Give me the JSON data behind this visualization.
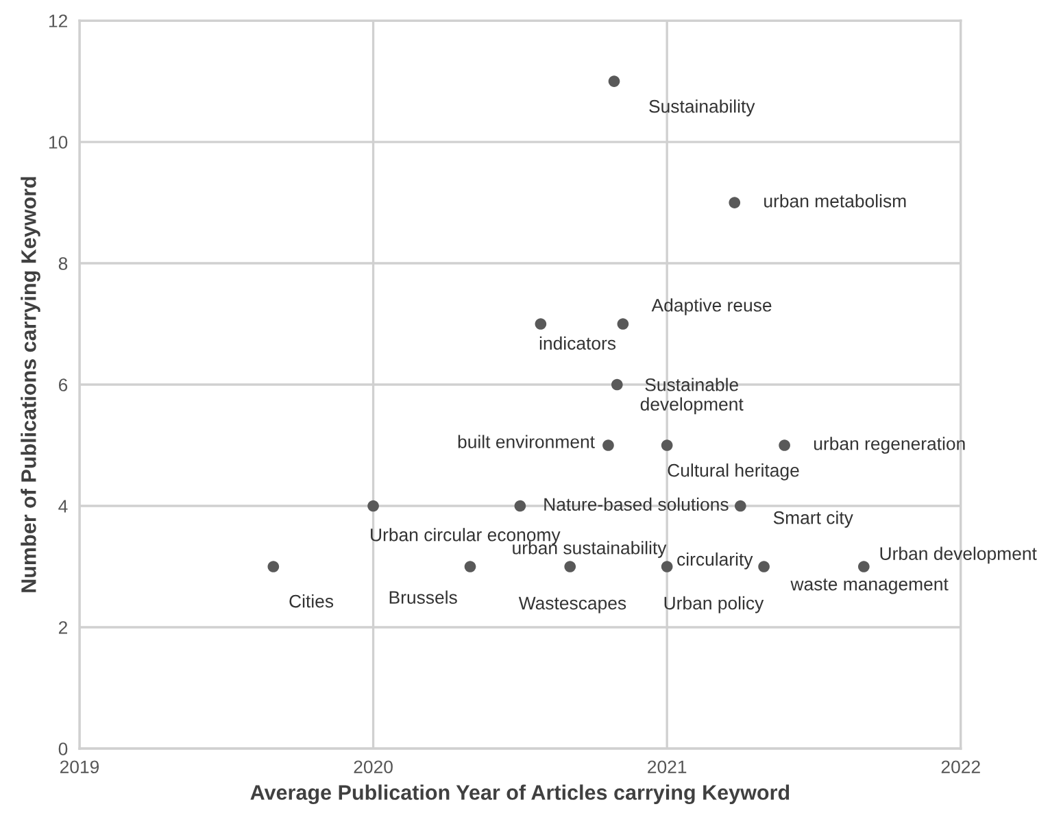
{
  "chart_data": {
    "type": "scatter",
    "xlabel": "Average Publication Year of Articles carrying Keyword",
    "ylabel": "Number of Publications carrying Keyword",
    "xlim": [
      2019,
      2022
    ],
    "xticks": [
      2019,
      2020,
      2021,
      2022
    ],
    "ylim": [
      0,
      12
    ],
    "yticks": [
      0,
      2,
      4,
      6,
      8,
      10,
      12
    ],
    "grid": true,
    "marker": "circle",
    "series": [
      {
        "color": "#595959",
        "x": [
          2020.82,
          2021.23,
          2020.85,
          2020.57,
          2020.83,
          2020.8,
          2021.0,
          2021.4,
          2020.0,
          2020.5,
          2021.25,
          2019.66,
          2020.33,
          2020.67,
          2021.0,
          2021.33,
          2021.67
        ],
        "values": [
          11,
          9,
          7,
          7,
          6,
          5,
          5,
          5,
          4,
          4,
          4,
          3,
          3,
          3,
          3,
          3,
          3
        ]
      }
    ],
    "annotations": [
      {
        "text": "Sustainability",
        "x": 2020.82,
        "y": 11
      },
      {
        "text": "urban metabolism",
        "x": 2021.23,
        "y": 9
      },
      {
        "text": "Adaptive reuse",
        "x": 2020.85,
        "y": 7
      },
      {
        "text": "indicators",
        "x": 2020.57,
        "y": 7
      },
      {
        "text": "Sustainable\ndevelopment",
        "x": 2020.83,
        "y": 6
      },
      {
        "text": "built environment",
        "x": 2020.8,
        "y": 5
      },
      {
        "text": "Cultural heritage",
        "x": 2021.0,
        "y": 5
      },
      {
        "text": "urban regeneration",
        "x": 2021.4,
        "y": 5
      },
      {
        "text": "Urban circular economy",
        "x": 2020.0,
        "y": 4
      },
      {
        "text": "Nature-based solutions",
        "x": 2020.5,
        "y": 4
      },
      {
        "text": "Smart city",
        "x": 2021.25,
        "y": 4
      },
      {
        "text": "Cities",
        "x": 2019.66,
        "y": 3
      },
      {
        "text": "Brussels",
        "x": 2020.33,
        "y": 3
      },
      {
        "text": "urban sustainability",
        "x": 2020.67,
        "y": 3
      },
      {
        "text": "Wastescapes",
        "x": 2020.67,
        "y": 3
      },
      {
        "text": "circularity",
        "x": 2021.0,
        "y": 3
      },
      {
        "text": "Urban policy",
        "x": 2021.0,
        "y": 3
      },
      {
        "text": "waste management",
        "x": 2021.33,
        "y": 3
      },
      {
        "text": "Urban development",
        "x": 2021.67,
        "y": 3
      }
    ]
  }
}
